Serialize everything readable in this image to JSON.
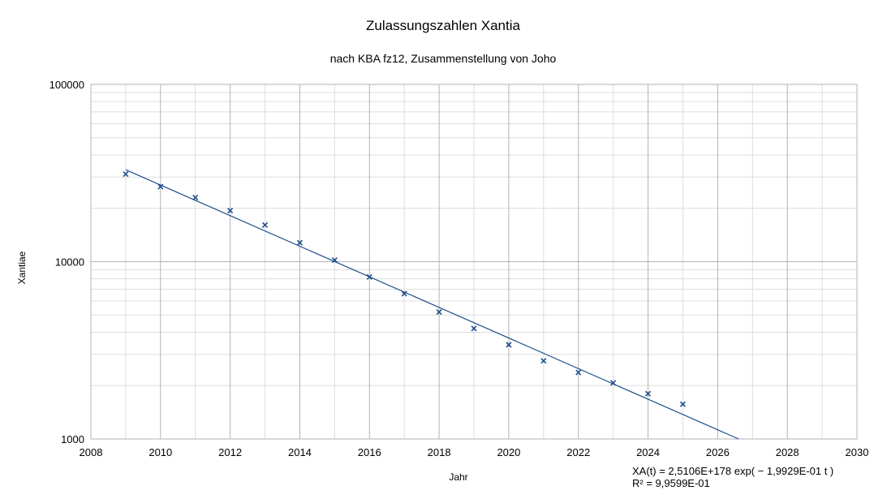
{
  "chart_data": {
    "type": "scatter",
    "title": "Zulassungszahlen Xantia",
    "subtitle": "nach KBA fz12, Zusammenstellung von Joho",
    "xlabel": "Jahr",
    "ylabel": "Xantiae",
    "xlim": [
      2008,
      2030
    ],
    "ylim": [
      1000,
      100000
    ],
    "yscale": "log",
    "grid": true,
    "x_ticks": [
      "2008",
      "2010",
      "2012",
      "2014",
      "2016",
      "2018",
      "2020",
      "2022",
      "2024",
      "2026",
      "2028",
      "2030"
    ],
    "y_ticks": [
      "1000",
      "10000",
      "100000"
    ],
    "series": [
      {
        "marker": "x",
        "color": "#1f4e8c",
        "x": [
          2009,
          2010,
          2011,
          2012,
          2013,
          2014,
          2015,
          2016,
          2017,
          2018,
          2019,
          2020,
          2021,
          2022,
          2023,
          2024,
          2025
        ],
        "y": [
          31200,
          26500,
          23000,
          19400,
          16100,
          12800,
          10200,
          8200,
          6600,
          5200,
          4200,
          3400,
          2760,
          2370,
          2070,
          1800,
          1570
        ]
      }
    ],
    "trendline": {
      "type": "exponential",
      "color": "#1f4e8c",
      "x_start": 2009,
      "x_end": 2026.6,
      "y_at_start": 33000,
      "rate": -0.19929,
      "equation": "XA(t) = 2,5106E+178 exp( − 1,9929E-01 t )",
      "r_squared": "R² = 9,9599E-01"
    }
  }
}
